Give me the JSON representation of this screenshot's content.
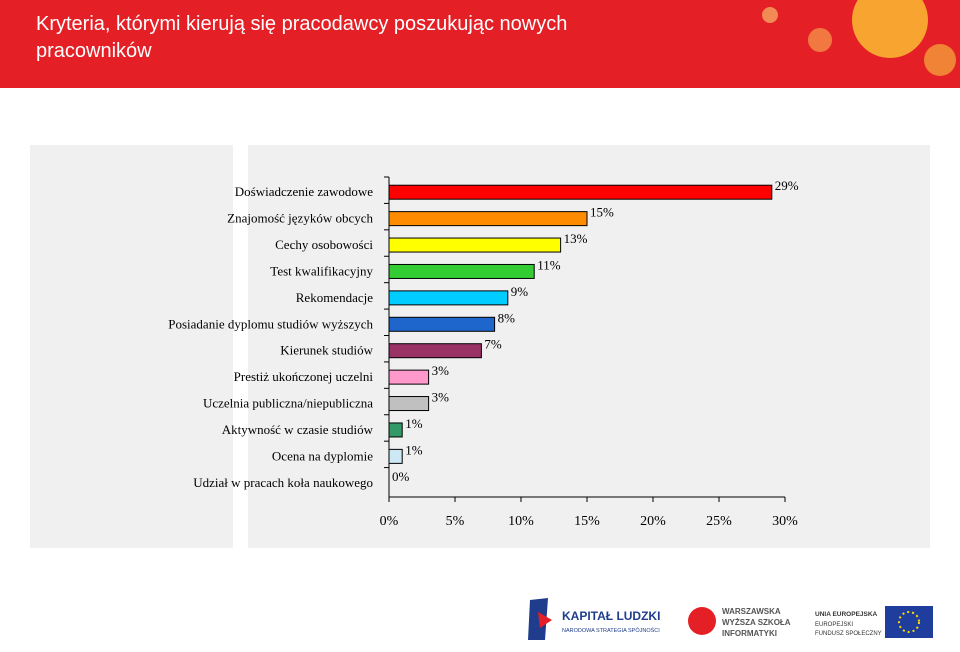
{
  "chart_data": {
    "type": "hbar",
    "title": "Kryteria, którymi kierują się pracodawcy poszukując nowych pracowników",
    "categories": [
      "Doświadczenie zawodowe",
      "Znajomość języków obcych",
      "Cechy osobowości",
      "Test kwalifikacyjny",
      "Rekomendacje",
      "Posiadanie dyplomu studiów wyższych",
      "Kierunek studiów",
      "Prestiż ukończonej uczelni",
      "Uczelnia publiczna/niepubliczna",
      "Aktywność w czasie studiów",
      "Ocena na dyplomie",
      "Udział w pracach koła naukowego"
    ],
    "values": [
      29,
      15,
      13,
      11,
      9,
      8,
      7,
      3,
      3,
      1,
      1,
      0
    ],
    "value_labels": [
      "29%",
      "15%",
      "13%",
      "11%",
      "9%",
      "8%",
      "7%",
      "3%",
      "3%",
      "1%",
      "1%",
      "0%"
    ],
    "colors": [
      "#ff0000",
      "#ff8c00",
      "#ffff00",
      "#33cc33",
      "#00ccff",
      "#1f66cc",
      "#993366",
      "#ff99cc",
      "#c0c0c0",
      "#339966",
      "#cce8f4",
      "#ffffff"
    ],
    "xlim": [
      0,
      30
    ],
    "xticks": [
      {
        "value": 0,
        "label": "0%"
      },
      {
        "value": 5,
        "label": "5%"
      },
      {
        "value": 10,
        "label": "10%"
      },
      {
        "value": 15,
        "label": "15%"
      },
      {
        "value": 20,
        "label": "20%"
      },
      {
        "value": 25,
        "label": "25%"
      },
      {
        "value": 30,
        "label": "30%"
      }
    ]
  },
  "footer": {
    "kl_title": "KAPITAŁ LUDZKI",
    "kl_sub": "NARODOWA STRATEGIA SPÓJNOŚCI",
    "school_1": "WARSZAWSKA",
    "school_2": "WYŻSZA SZKOŁA",
    "school_3": "INFORMATYKI",
    "eu_1": "UNIA EUROPEJSKA",
    "eu_2": "EUROPEJSKI",
    "eu_3": "FUNDUSZ SPOŁECZNY"
  }
}
